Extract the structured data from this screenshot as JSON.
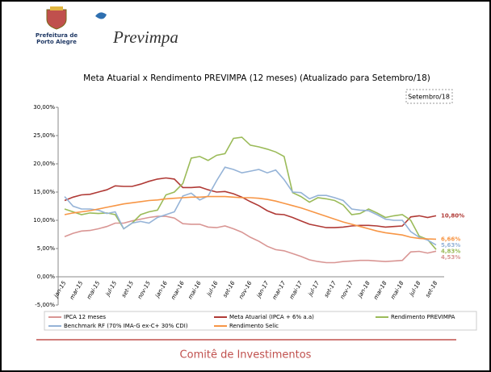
{
  "header": {
    "org_line1": "Prefeitura de",
    "org_line2": "Porto Alegre",
    "brand": "Previmpa"
  },
  "footer": {
    "text": "Comitê de Investimentos"
  },
  "chart_data": {
    "type": "line",
    "title": "Meta Atuarial x Rendimento PREVIMPA (12 meses) (Atualizado para Setembro/18)",
    "annotation": "Setembro/18",
    "categories": [
      "jan-15",
      null,
      "mar-15",
      null,
      "mai-15",
      null,
      "jul-15",
      null,
      "set-15",
      null,
      "nov-15",
      null,
      "jan-16",
      null,
      "mar-16",
      null,
      "mai-16",
      null,
      "jul-16",
      null,
      "set-16",
      null,
      "nov-16",
      null,
      "jan-17",
      null,
      "mar-17",
      null,
      "mai-17",
      null,
      "jul-17",
      null,
      "set-17",
      null,
      "nov-17",
      null,
      "jan-18",
      null,
      "mar-18",
      null,
      "mai-18",
      null,
      "jul-18",
      null,
      "set-18"
    ],
    "ylim": [
      -5,
      30
    ],
    "yticks": [
      {
        "value": -5,
        "label": "-5,00%"
      },
      {
        "value": 0,
        "label": "0,00%"
      },
      {
        "value": 5,
        "label": "5,00%"
      },
      {
        "value": 10,
        "label": "10,00%"
      },
      {
        "value": 15,
        "label": "15,00%"
      },
      {
        "value": 20,
        "label": "20,00%"
      },
      {
        "value": 25,
        "label": "25,00%"
      },
      {
        "value": 30,
        "label": "30,00%"
      }
    ],
    "grid": false,
    "series": [
      {
        "name": "IPCA 12 meses",
        "color": "#d99694",
        "values": [
          7.1,
          7.7,
          8.1,
          8.2,
          8.5,
          8.9,
          9.5,
          9.5,
          9.9,
          10.2,
          10.5,
          10.7,
          10.7,
          10.4,
          9.4,
          9.3,
          9.3,
          8.8,
          8.7,
          9.0,
          8.5,
          7.9,
          7.0,
          6.3,
          5.4,
          4.8,
          4.6,
          4.1,
          3.6,
          3.0,
          2.7,
          2.5,
          2.5,
          2.7,
          2.8,
          2.9,
          2.9,
          2.8,
          2.7,
          2.8,
          2.9,
          4.4,
          4.5,
          4.2,
          4.53
        ],
        "value_labels": [
          null,
          null,
          null,
          null,
          null,
          null,
          null,
          null,
          null,
          null,
          null,
          null,
          null,
          null,
          null,
          null,
          null,
          null,
          null,
          null,
          null,
          null,
          null,
          null,
          null,
          null,
          null,
          null,
          null,
          null,
          null,
          null,
          null,
          null,
          null,
          null,
          null,
          null,
          null,
          null,
          null,
          null,
          null,
          null,
          "4,53%"
        ]
      },
      {
        "name": "Meta Atuarial (IPCA + 6% a.a)",
        "color": "#b03a36",
        "values": [
          13.5,
          14.1,
          14.5,
          14.6,
          15.0,
          15.4,
          16.1,
          16.0,
          16.0,
          16.4,
          16.9,
          17.3,
          17.5,
          17.3,
          15.8,
          15.8,
          15.9,
          15.4,
          15.0,
          15.1,
          14.7,
          14.1,
          13.3,
          12.6,
          11.7,
          11.1,
          11.0,
          10.5,
          9.9,
          9.3,
          9.0,
          8.7,
          8.7,
          8.8,
          9.0,
          9.1,
          9.1,
          9.0,
          8.8,
          8.9,
          9.0,
          10.6,
          10.8,
          10.5,
          10.8
        ],
        "value_labels": [
          null,
          null,
          null,
          null,
          null,
          null,
          null,
          null,
          null,
          null,
          null,
          null,
          null,
          null,
          null,
          null,
          null,
          null,
          null,
          null,
          null,
          null,
          null,
          null,
          null,
          null,
          null,
          null,
          null,
          null,
          null,
          null,
          null,
          null,
          null,
          null,
          null,
          null,
          null,
          null,
          null,
          null,
          null,
          null,
          "10,80%"
        ]
      },
      {
        "name": "Rendimento PREVIMPA",
        "color": "#9bbb59",
        "values": [
          12.0,
          11.5,
          11.0,
          11.3,
          11.2,
          11.3,
          11.0,
          8.5,
          9.5,
          11.0,
          11.5,
          11.8,
          14.5,
          15.0,
          16.5,
          21.0,
          21.3,
          20.6,
          21.5,
          21.8,
          24.5,
          24.7,
          23.3,
          23.0,
          22.6,
          22.1,
          21.3,
          14.9,
          14.2,
          13.2,
          14.0,
          13.8,
          13.5,
          12.7,
          11.0,
          11.2,
          12.0,
          11.3,
          10.5,
          10.8,
          11.0,
          10.0,
          7.2,
          6.6,
          4.83
        ],
        "value_labels": [
          null,
          null,
          null,
          null,
          null,
          null,
          null,
          null,
          null,
          null,
          null,
          null,
          null,
          null,
          null,
          null,
          null,
          null,
          null,
          null,
          null,
          null,
          null,
          null,
          null,
          null,
          null,
          null,
          null,
          null,
          null,
          null,
          null,
          null,
          null,
          null,
          null,
          null,
          null,
          null,
          null,
          null,
          null,
          null,
          "4,83%"
        ]
      },
      {
        "name": "Benchmark RF (70% IMA-G ex-C+ 30% CDI)",
        "color": "#95b3d7",
        "values": [
          14.2,
          12.5,
          12.0,
          12.0,
          11.8,
          11.2,
          11.5,
          8.5,
          9.5,
          9.8,
          9.5,
          10.5,
          11.0,
          11.5,
          14.3,
          14.8,
          13.6,
          14.3,
          17.0,
          19.4,
          19.0,
          18.4,
          18.7,
          19.0,
          18.4,
          18.9,
          17.2,
          15.0,
          14.9,
          13.8,
          14.4,
          14.4,
          14.0,
          13.5,
          12.0,
          11.8,
          11.7,
          11.0,
          10.2,
          10.0,
          10.0,
          8.0,
          7.0,
          6.5,
          5.63
        ],
        "value_labels": [
          null,
          null,
          null,
          null,
          null,
          null,
          null,
          null,
          null,
          null,
          null,
          null,
          null,
          null,
          null,
          null,
          null,
          null,
          null,
          null,
          null,
          null,
          null,
          null,
          null,
          null,
          null,
          null,
          null,
          null,
          null,
          null,
          null,
          null,
          null,
          null,
          null,
          null,
          null,
          null,
          null,
          null,
          null,
          null,
          "5,63%"
        ]
      },
      {
        "name": "Rendimento Selic",
        "color": "#f79646",
        "values": [
          11.0,
          11.3,
          11.5,
          11.7,
          12.0,
          12.3,
          12.6,
          12.9,
          13.1,
          13.3,
          13.5,
          13.6,
          13.8,
          13.9,
          14.0,
          14.1,
          14.1,
          14.2,
          14.2,
          14.2,
          14.1,
          14.0,
          14.0,
          13.9,
          13.7,
          13.4,
          13.0,
          12.6,
          12.2,
          11.7,
          11.2,
          10.7,
          10.2,
          9.7,
          9.3,
          8.9,
          8.5,
          8.1,
          7.8,
          7.6,
          7.4,
          7.0,
          6.8,
          6.7,
          6.66
        ],
        "value_labels": [
          null,
          null,
          null,
          null,
          null,
          null,
          null,
          null,
          null,
          null,
          null,
          null,
          null,
          null,
          null,
          null,
          null,
          null,
          null,
          null,
          null,
          null,
          null,
          null,
          null,
          null,
          null,
          null,
          null,
          null,
          null,
          null,
          null,
          null,
          null,
          null,
          null,
          null,
          null,
          null,
          null,
          null,
          null,
          null,
          "6,66%"
        ]
      }
    ]
  }
}
